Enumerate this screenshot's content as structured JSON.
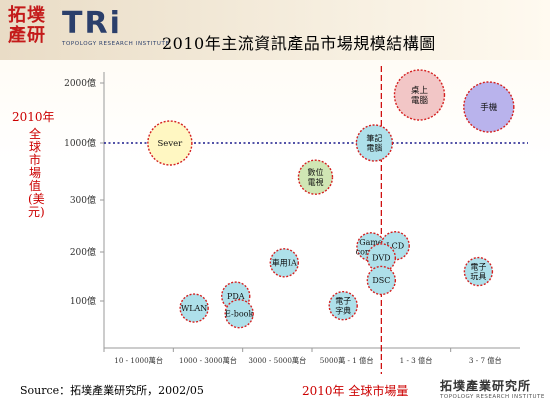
{
  "header": {
    "logo_cn_line1": "拓墣",
    "logo_cn_line2": "產研",
    "logo_tri": "TRi",
    "logo_sub": "TOPOLOGY RESEARCH INSTITUTE",
    "title": "2010年主流資訊產品市場規模結構圖"
  },
  "footer": {
    "source": "Source：拓墣產業研究所，2002/05",
    "logo_cn": "拓墣產業研究所",
    "logo_en": "TOPOLOGY RESEARCH INSTITUTE"
  },
  "colors": {
    "dotted_line": "#1a1a8c",
    "divider_line": "#cc0000",
    "axis_text": "#333333",
    "bubble_border": "#d42020"
  },
  "chart_data": {
    "type": "scatter",
    "title": "2010年主流資訊產品市場規模結構圖",
    "xlabel": "2010年 全球市場量",
    "ylabel_year": "2010年",
    "ylabel": "全球市場值(美元)",
    "x_ticks": [
      "10 - 1000萬台",
      "1000 - 3000萬台",
      "3000 - 5000萬台",
      "5000萬 - 1 億台",
      "1 - 3 億台",
      "3 - 7 億台"
    ],
    "y_ticks": [
      "100億",
      "200億",
      "300億",
      "1000億",
      "2000億"
    ],
    "y_tick_values": [
      100,
      200,
      300,
      1000,
      2000
    ],
    "x_range": [
      0,
      6
    ],
    "grid": false,
    "reference_lines": [
      {
        "orientation": "horizontal",
        "y": 1000,
        "style": "dotted"
      },
      {
        "orientation": "vertical",
        "x": 4.0,
        "style": "dashed"
      }
    ],
    "bubbles": [
      {
        "label": [
          "Sever"
        ],
        "x": 0.95,
        "y": 1000,
        "r": 22,
        "color": "#fff7c2"
      },
      {
        "label": [
          "桌上",
          "電腦"
        ],
        "x": 4.55,
        "y": 1800,
        "r": 25,
        "color": "#f2c6c6"
      },
      {
        "label": [
          "手機"
        ],
        "x": 5.55,
        "y": 1600,
        "r": 25,
        "color": "#b9b3ec"
      },
      {
        "label": [
          "筆記",
          "電腦"
        ],
        "x": 3.9,
        "y": 1000,
        "r": 18,
        "color": "#aee0ea"
      },
      {
        "label": [
          "數位",
          "電視"
        ],
        "x": 3.05,
        "y": 580,
        "r": 17,
        "color": "#d0e6b4"
      },
      {
        "label": [
          "Game",
          "console"
        ],
        "x": 3.85,
        "y": 210,
        "r": 14,
        "color": "#aee0ea"
      },
      {
        "label": [
          "LCD"
        ],
        "x": 4.2,
        "y": 212,
        "r": 14,
        "color": "#aee0ea"
      },
      {
        "label": [
          "DVD"
        ],
        "x": 4.0,
        "y": 188,
        "r": 14,
        "color": "#aee0ea"
      },
      {
        "label": [
          "DSC"
        ],
        "x": 4.0,
        "y": 142,
        "r": 14,
        "color": "#aee0ea"
      },
      {
        "label": [
          "車用IA"
        ],
        "x": 2.6,
        "y": 178,
        "r": 14,
        "color": "#aee0ea"
      },
      {
        "label": [
          "電子",
          "玩具"
        ],
        "x": 5.4,
        "y": 160,
        "r": 14,
        "color": "#aee0ea"
      },
      {
        "label": [
          "PDA"
        ],
        "x": 1.9,
        "y": 110,
        "r": 14,
        "color": "#aee0ea"
      },
      {
        "label": [
          "WLAN"
        ],
        "x": 1.3,
        "y": 85,
        "r": 14,
        "color": "#aee0ea"
      },
      {
        "label": [
          "E-book"
        ],
        "x": 1.95,
        "y": 73,
        "r": 14,
        "color": "#aee0ea"
      },
      {
        "label": [
          "電子",
          "字典"
        ],
        "x": 3.45,
        "y": 90,
        "r": 14,
        "color": "#aee0ea"
      }
    ]
  }
}
